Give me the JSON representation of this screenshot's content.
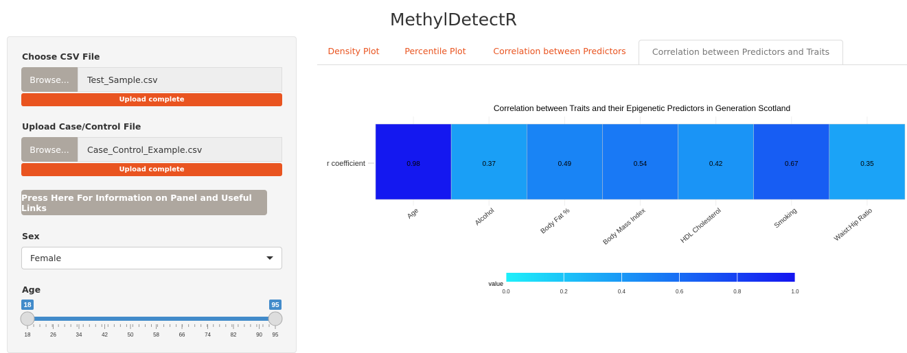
{
  "header": {
    "title": "MethylDetectR"
  },
  "sidebar": {
    "csv_label": "Choose CSV File",
    "csv_browse": "Browse...",
    "csv_file": "Test_Sample.csv",
    "csv_status": "Upload complete",
    "cc_label": "Upload Case/Control File",
    "cc_browse": "Browse...",
    "cc_file": "Case_Control_Example.csv",
    "cc_status": "Upload complete",
    "info_button": "Press Here For Information on Panel and Useful Links",
    "sex_label": "Sex",
    "sex_value": "Female",
    "age_label": "Age",
    "age_min": 18,
    "age_max": 95,
    "age_ticks": [
      18,
      26,
      34,
      42,
      50,
      58,
      66,
      74,
      82,
      90,
      95
    ]
  },
  "tabs": [
    "Density Plot",
    "Percentile Plot",
    "Correlation between Predictors",
    "Correlation between Predictors and Traits"
  ],
  "active_tab": 3,
  "chart_data": {
    "type": "heatmap",
    "title": "Correlation between Traits and their Epigenetic Predictors in Generation Scotland",
    "row_label": "r coefficient",
    "categories": [
      "Age",
      "Alcohol",
      "Body Fat %",
      "Body Mass Index",
      "HDL Cholesterol",
      "Smoking",
      "Waist:Hip Ratio"
    ],
    "values": [
      0.98,
      0.37,
      0.49,
      0.54,
      0.42,
      0.67,
      0.35
    ],
    "legend_title": "value",
    "colorlim": [
      0,
      1
    ],
    "colorticks": [
      {
        "value": 0,
        "label": "0.0"
      },
      {
        "value": 0.2,
        "label": "0.2"
      },
      {
        "value": 0.4,
        "label": "0.4"
      },
      {
        "value": 0.6,
        "label": "0.6"
      },
      {
        "value": 0.8,
        "label": "0.8"
      },
      {
        "value": 1,
        "label": "1.0"
      }
    ],
    "low_color": "#1ef0fa",
    "high_color": "#1414f0"
  }
}
